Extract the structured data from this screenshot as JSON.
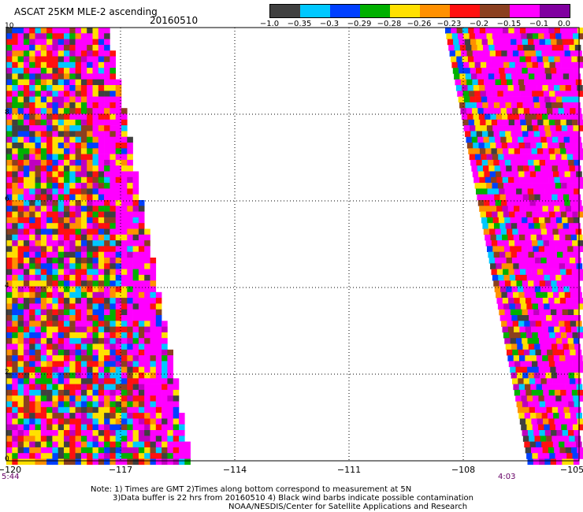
{
  "header": {
    "title": "ASCAT 25KM MLE-2 ascending",
    "date": "20160510"
  },
  "colorbar": {
    "colors": [
      "#404040",
      "#00c8ff",
      "#0040ff",
      "#00b000",
      "#ffe000",
      "#ff9000",
      "#ff1010",
      "#8b4020",
      "#ff00ff",
      "#8000a0"
    ],
    "labels": [
      "−1.0",
      "−0.35",
      "−0.3",
      "−0.29",
      "−0.28",
      "−0.26",
      "−0.23",
      "−0.2",
      "−0.15",
      "−0.1",
      "0.0"
    ]
  },
  "map": {
    "y_ticks": [
      "10",
      "8",
      "6",
      "4",
      "2",
      "0"
    ],
    "x_ticks": [
      "−120",
      "−117",
      "−114",
      "−111",
      "−108",
      "−105"
    ],
    "lon_range": [
      -120,
      -105
    ],
    "lat_range": [
      0,
      10
    ],
    "gridlines_dotted": true
  },
  "swaths": {
    "left": {
      "time": "5:44"
    },
    "right": {
      "time": "4:03"
    }
  },
  "notes": {
    "line1": "Note: 1) Times are GMT 2)Times along bottom correspond to measurement at 5N",
    "line2": "3)Data buffer is 22 hrs from 20160510 4) Black wind barbs indicate possible contamination",
    "line3": "NOAA/NESDIS/Center for Satellite Applications and Research"
  }
}
